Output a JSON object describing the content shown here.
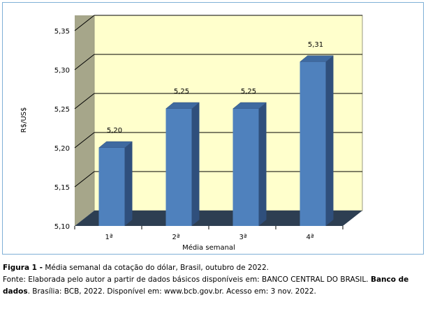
{
  "chart_data": {
    "type": "bar",
    "categories": [
      "1ª",
      "2ª",
      "3ª",
      "4ª"
    ],
    "values": [
      5.2,
      5.25,
      5.25,
      5.31
    ],
    "data_labels": [
      "5,20",
      "5,25",
      "5,25",
      "5,31"
    ],
    "xlabel": "Média semanal",
    "ylabel": "R$/US$",
    "ylim": [
      5.1,
      5.35
    ],
    "yticks": [
      5.1,
      5.15,
      5.2,
      5.25,
      5.3,
      5.35
    ],
    "ytick_labels": [
      "5,10",
      "5,15",
      "5,20",
      "5,25",
      "5,30",
      "5,35"
    ],
    "grid": true,
    "bar_color": "#4f81bd",
    "plot_background": "#ffffcc",
    "wall_color": "#a6a68a",
    "floor_color": "#2d3e52"
  },
  "caption": {
    "figure_label": "Figura 1 -",
    "figure_text": " Média semanal da cotação do dólar, Brasil, outubro de 2022.",
    "source_prefix": "Fonte: Elaborada pelo autor a partir de dados básicos disponíveis em: BANCO CENTRAL DO BRASIL. ",
    "source_bold": "Banco de dados",
    "source_suffix": ". Brasília: BCB, 2022. Disponível em: www.bcb.gov.br. Acesso em: 3 nov. 2022."
  }
}
